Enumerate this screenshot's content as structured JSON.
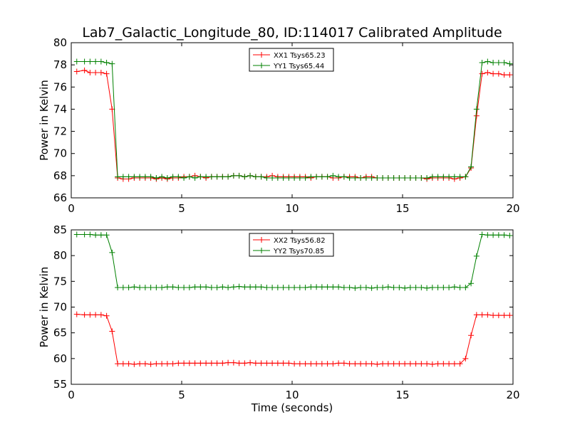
{
  "figure_title": "Lab7_Galactic_Longitude_80, ID:114017 Calibrated Amplitude",
  "colors": {
    "xx": "#ff0000",
    "yy": "#008000",
    "axis": "#000000",
    "background": "#ffffff"
  },
  "chart_data": [
    {
      "type": "line",
      "title": "Lab7_Galactic_Longitude_80, ID:114017 Calibrated Amplitude",
      "xlabel": "",
      "ylabel": "Power in Kelvin",
      "xlim": [
        0,
        20
      ],
      "ylim": [
        66,
        80
      ],
      "xticks": [
        0,
        5,
        10,
        15,
        20
      ],
      "yticks": [
        66,
        68,
        70,
        72,
        74,
        76,
        78,
        80
      ],
      "grid": false,
      "legend": "upper center",
      "x": [
        0.25,
        0.6,
        0.85,
        1.1,
        1.35,
        1.6,
        1.85,
        2.1,
        2.35,
        2.6,
        2.85,
        3.1,
        3.35,
        3.6,
        3.85,
        4.1,
        4.35,
        4.6,
        4.85,
        5.1,
        5.35,
        5.6,
        5.85,
        6.1,
        6.35,
        6.6,
        6.85,
        7.1,
        7.35,
        7.6,
        7.85,
        8.1,
        8.35,
        8.6,
        8.85,
        9.1,
        9.35,
        9.6,
        9.85,
        10.1,
        10.35,
        10.6,
        10.85,
        11.1,
        11.35,
        11.6,
        11.85,
        12.1,
        12.35,
        12.6,
        12.85,
        13.1,
        13.35,
        13.6,
        13.85,
        14.1,
        14.35,
        14.6,
        14.85,
        15.1,
        15.35,
        15.6,
        15.85,
        16.1,
        16.35,
        16.6,
        16.85,
        17.1,
        17.35,
        17.6,
        17.85,
        18.1,
        18.35,
        18.6,
        18.85,
        19.1,
        19.35,
        19.6,
        19.85
      ],
      "series": [
        {
          "name": "XX1 Tsys65.23",
          "color": "#ff0000",
          "values": [
            77.4,
            77.5,
            77.3,
            77.3,
            77.3,
            77.2,
            74.0,
            67.8,
            67.7,
            67.7,
            67.8,
            67.8,
            67.8,
            67.8,
            67.7,
            67.8,
            67.7,
            67.8,
            67.8,
            67.9,
            67.9,
            68.0,
            67.9,
            67.8,
            67.9,
            67.9,
            67.9,
            67.9,
            68.0,
            68.0,
            67.9,
            68.0,
            67.9,
            67.9,
            67.9,
            68.0,
            67.9,
            67.9,
            67.9,
            67.9,
            67.9,
            67.9,
            67.8,
            67.9,
            67.9,
            67.9,
            67.8,
            67.8,
            67.9,
            67.9,
            67.9,
            67.8,
            67.9,
            67.9,
            67.8,
            67.8,
            67.8,
            67.8,
            67.8,
            67.8,
            67.8,
            67.8,
            67.8,
            67.7,
            67.8,
            67.8,
            67.8,
            67.8,
            67.7,
            67.8,
            67.9,
            68.7,
            73.4,
            77.2,
            77.3,
            77.2,
            77.2,
            77.1,
            77.1
          ]
        },
        {
          "name": "YY1 Tsys65.44",
          "color": "#008000",
          "values": [
            78.3,
            78.3,
            78.3,
            78.3,
            78.3,
            78.2,
            78.1,
            67.9,
            67.9,
            67.9,
            67.9,
            67.9,
            67.9,
            67.9,
            67.8,
            67.9,
            67.8,
            67.9,
            67.9,
            67.8,
            67.9,
            67.8,
            67.9,
            67.9,
            67.9,
            67.9,
            67.9,
            67.9,
            68.0,
            68.0,
            67.9,
            68.0,
            67.9,
            67.9,
            67.8,
            67.8,
            67.8,
            67.8,
            67.8,
            67.8,
            67.8,
            67.8,
            67.9,
            67.9,
            67.9,
            67.9,
            68.0,
            67.9,
            67.9,
            67.8,
            67.8,
            67.8,
            67.8,
            67.8,
            67.8,
            67.8,
            67.8,
            67.8,
            67.8,
            67.8,
            67.8,
            67.8,
            67.8,
            67.8,
            67.9,
            67.9,
            67.9,
            67.9,
            67.9,
            67.9,
            67.9,
            68.8,
            74.0,
            78.2,
            78.3,
            78.2,
            78.2,
            78.2,
            78.1
          ]
        }
      ]
    },
    {
      "type": "line",
      "title": "",
      "xlabel": "Time (seconds)",
      "ylabel": "Power in Kelvin",
      "xlim": [
        0,
        20
      ],
      "ylim": [
        55,
        85
      ],
      "xticks": [
        0,
        5,
        10,
        15,
        20
      ],
      "yticks": [
        55,
        60,
        65,
        70,
        75,
        80,
        85
      ],
      "grid": false,
      "legend": "upper center",
      "x": [
        0.25,
        0.6,
        0.85,
        1.1,
        1.35,
        1.6,
        1.85,
        2.1,
        2.35,
        2.6,
        2.85,
        3.1,
        3.35,
        3.6,
        3.85,
        4.1,
        4.35,
        4.6,
        4.85,
        5.1,
        5.35,
        5.6,
        5.85,
        6.1,
        6.35,
        6.6,
        6.85,
        7.1,
        7.35,
        7.6,
        7.85,
        8.1,
        8.35,
        8.6,
        8.85,
        9.1,
        9.35,
        9.6,
        9.85,
        10.1,
        10.35,
        10.6,
        10.85,
        11.1,
        11.35,
        11.6,
        11.85,
        12.1,
        12.35,
        12.6,
        12.85,
        13.1,
        13.35,
        13.6,
        13.85,
        14.1,
        14.35,
        14.6,
        14.85,
        15.1,
        15.35,
        15.6,
        15.85,
        16.1,
        16.35,
        16.6,
        16.85,
        17.1,
        17.35,
        17.6,
        17.85,
        18.1,
        18.35,
        18.6,
        18.85,
        19.1,
        19.35,
        19.6,
        19.85
      ],
      "series": [
        {
          "name": "XX2 Tsys56.82",
          "color": "#ff0000",
          "values": [
            68.6,
            68.5,
            68.5,
            68.5,
            68.5,
            68.3,
            65.3,
            59.0,
            59.0,
            59.0,
            58.9,
            59.0,
            59.0,
            58.9,
            59.0,
            59.0,
            59.0,
            59.0,
            59.1,
            59.1,
            59.1,
            59.1,
            59.1,
            59.1,
            59.1,
            59.1,
            59.1,
            59.2,
            59.2,
            59.1,
            59.1,
            59.2,
            59.1,
            59.1,
            59.1,
            59.1,
            59.1,
            59.1,
            59.1,
            59.0,
            59.0,
            59.0,
            59.0,
            59.0,
            59.0,
            59.0,
            59.0,
            59.1,
            59.1,
            59.0,
            59.0,
            59.0,
            59.0,
            59.0,
            58.9,
            59.0,
            59.0,
            59.0,
            59.0,
            59.0,
            59.0,
            59.0,
            59.0,
            59.0,
            58.9,
            59.0,
            59.0,
            59.0,
            59.0,
            59.0,
            60.0,
            64.5,
            68.5,
            68.5,
            68.5,
            68.4,
            68.4,
            68.4,
            68.4
          ]
        },
        {
          "name": "YY2 Tsys70.85",
          "color": "#008000",
          "values": [
            84.1,
            84.1,
            84.1,
            84.0,
            84.0,
            84.0,
            80.6,
            73.8,
            73.8,
            73.8,
            73.9,
            73.8,
            73.8,
            73.8,
            73.8,
            73.8,
            73.9,
            73.9,
            73.8,
            73.8,
            73.8,
            73.9,
            73.9,
            73.9,
            73.8,
            73.8,
            73.9,
            73.8,
            73.9,
            74.0,
            73.9,
            73.9,
            73.9,
            73.9,
            73.8,
            73.8,
            73.8,
            73.8,
            73.8,
            73.8,
            73.8,
            73.8,
            73.9,
            73.9,
            73.9,
            73.9,
            73.9,
            73.9,
            73.8,
            73.8,
            73.7,
            73.8,
            73.8,
            73.7,
            73.8,
            73.8,
            73.9,
            73.8,
            73.8,
            73.7,
            73.8,
            73.8,
            73.8,
            73.7,
            73.8,
            73.8,
            73.8,
            73.8,
            73.9,
            73.8,
            73.8,
            74.6,
            79.9,
            84.1,
            84.0,
            84.0,
            84.0,
            84.0,
            83.9
          ]
        }
      ]
    }
  ]
}
